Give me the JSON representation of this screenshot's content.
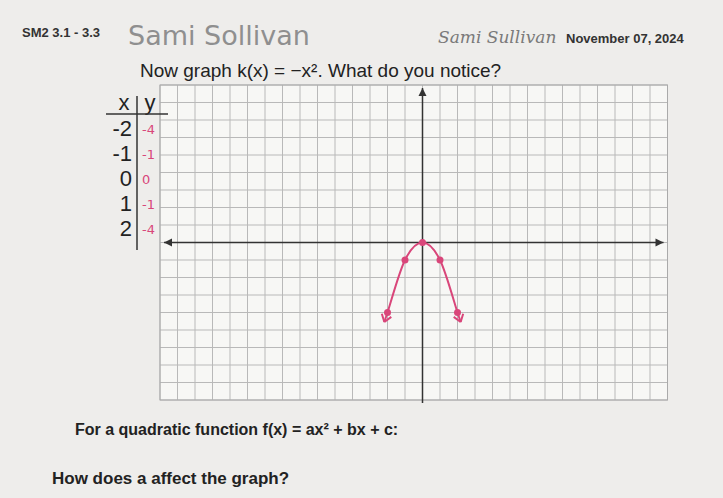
{
  "header": {
    "code": "SM2 3.1 - 3.3",
    "name": "Sami Sollivan",
    "signature": "Sami Sullivan",
    "date": "November 07, 2024"
  },
  "prompt": "Now graph k(x) = −x². What do you notice?",
  "table": {
    "columns": [
      "x",
      "y"
    ],
    "rows": [
      [
        "-2",
        "-4"
      ],
      [
        "-1",
        "-1"
      ],
      [
        "0",
        "0"
      ],
      [
        "1",
        "-1"
      ],
      [
        "2",
        "-4"
      ]
    ]
  },
  "chart_data": {
    "type": "line",
    "x": [
      -2,
      -1,
      0,
      1,
      2
    ],
    "values": [
      -4,
      -1,
      0,
      -1,
      -4
    ],
    "color": "#d9467a",
    "marker": "circle",
    "xlim": [
      -15,
      14
    ],
    "ylim": [
      -9,
      9
    ],
    "xticks": [
      -15,
      -14,
      -13,
      -12,
      -11,
      -10,
      -9,
      -8,
      -7,
      -6,
      -5,
      -4,
      -3,
      -2,
      -1,
      0,
      1,
      2,
      3,
      4,
      5,
      6,
      7,
      8,
      9,
      10,
      11,
      12,
      13,
      14
    ],
    "yticks": [
      -9,
      -8,
      -7,
      -6,
      -5,
      -4,
      -3,
      -2,
      -1,
      0,
      1,
      2,
      3,
      4,
      5,
      6,
      7,
      8,
      9
    ],
    "grid": true,
    "tick_labels": false
  },
  "footer": [
    "For a quadratic function f(x) = ax² + bx + c:",
    "How does a affect the graph?"
  ]
}
